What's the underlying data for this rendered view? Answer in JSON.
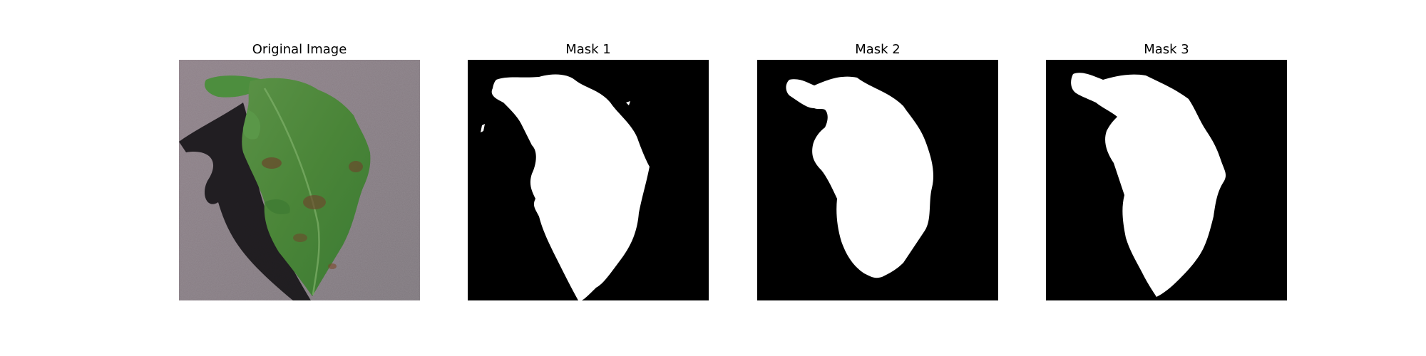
{
  "figure": {
    "panels": [
      {
        "id": "original",
        "title": "Original Image"
      },
      {
        "id": "mask1",
        "title": "Mask 1"
      },
      {
        "id": "mask2",
        "title": "Mask 2"
      },
      {
        "id": "mask3",
        "title": "Mask 3"
      }
    ]
  },
  "colors": {
    "mask_foreground": "#ffffff",
    "mask_background": "#000000",
    "photo_background": "#8c8289",
    "leaf_green": "#4b8a3c"
  }
}
